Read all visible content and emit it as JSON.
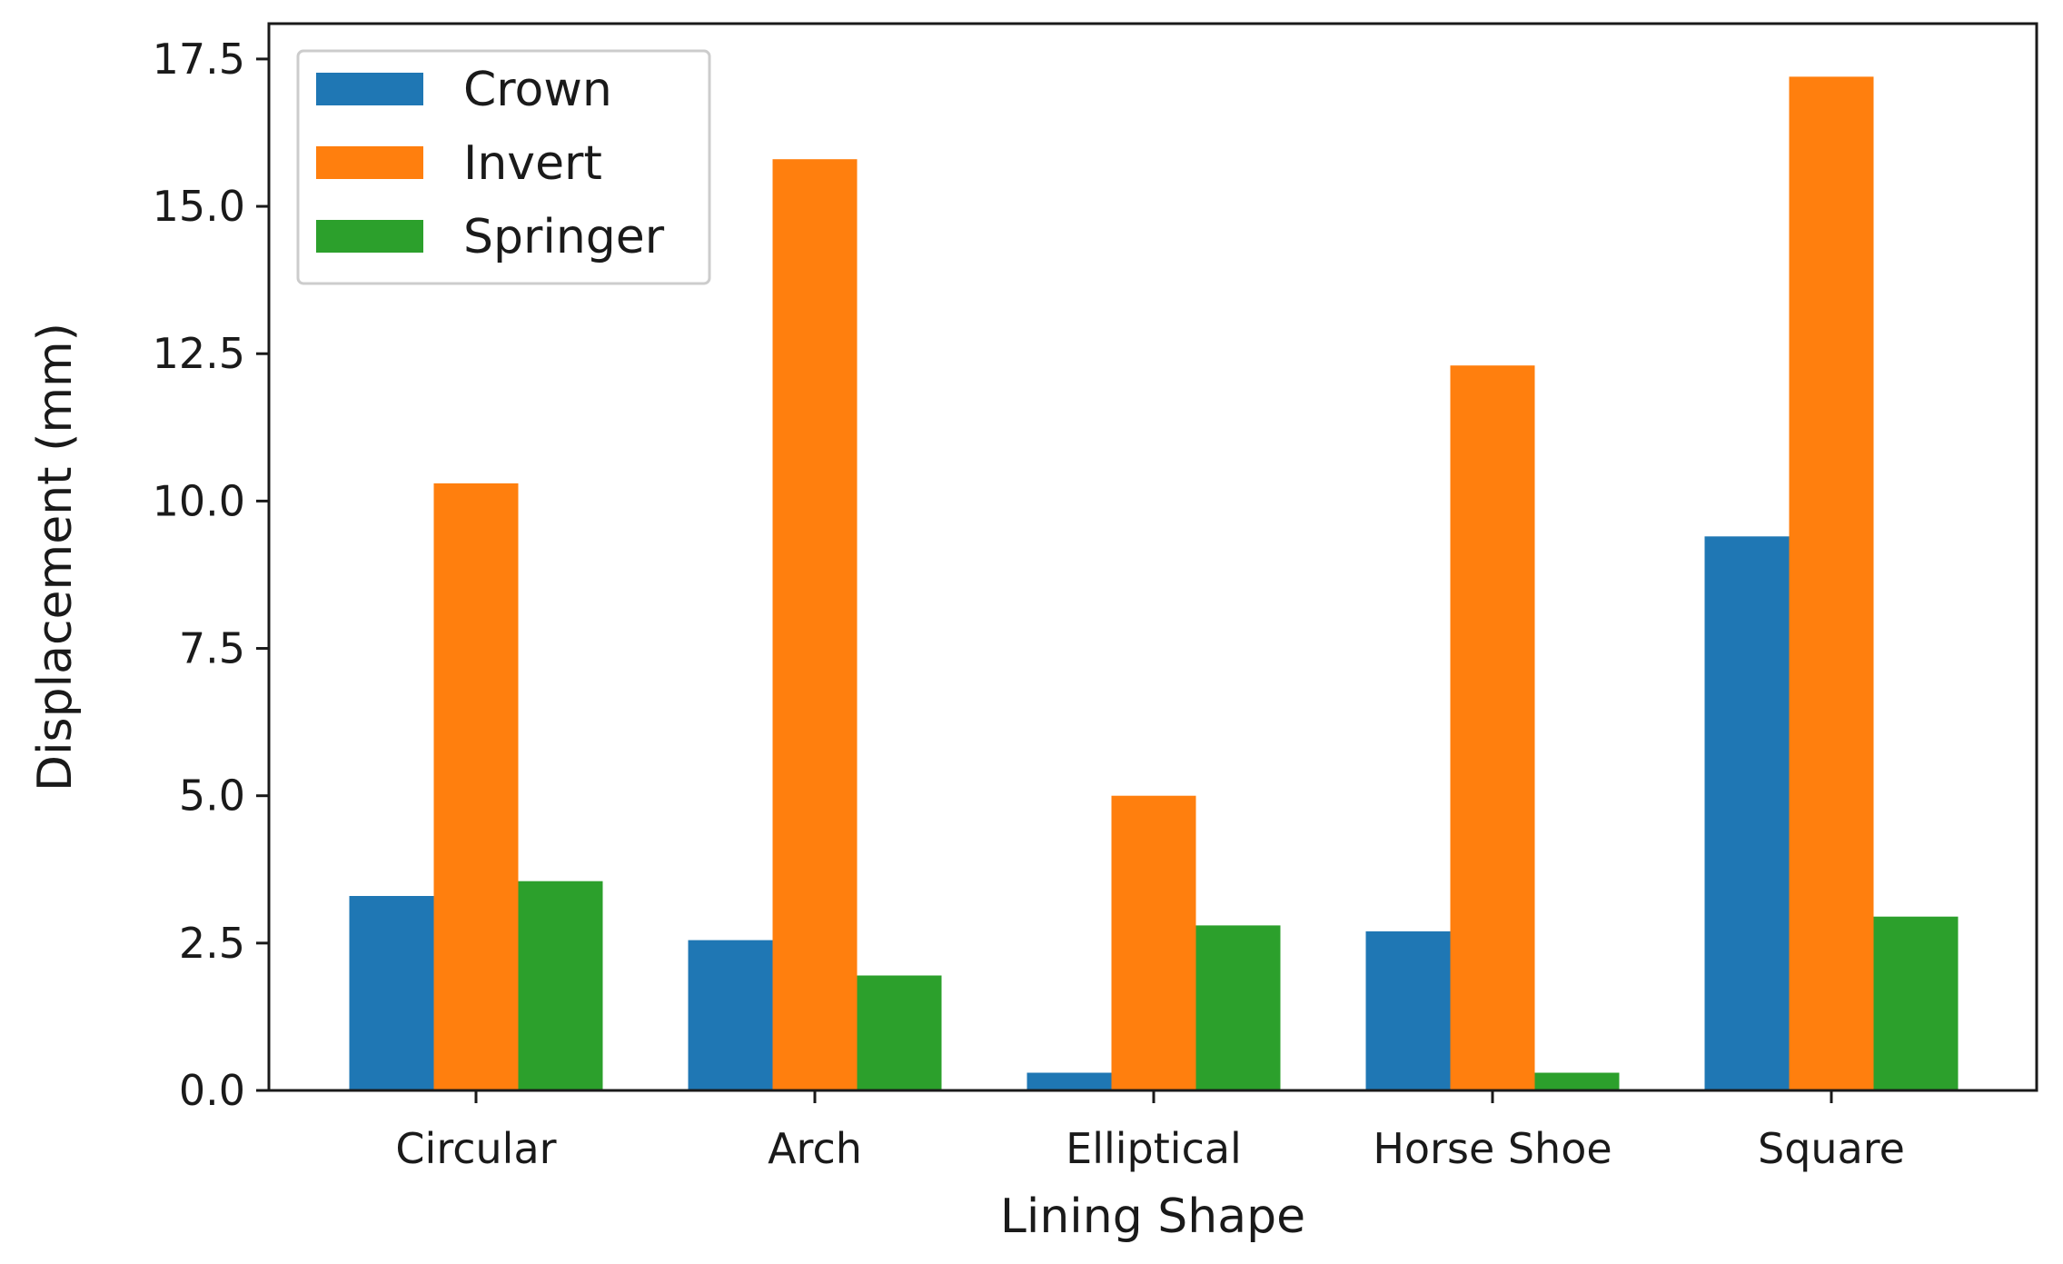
{
  "chart_data": {
    "type": "bar",
    "title": "",
    "xlabel": "Lining Shape",
    "ylabel": "Displacement (mm)",
    "categories": [
      "Circular",
      "Arch",
      "Elliptical",
      "Horse Shoe",
      "Square"
    ],
    "series": [
      {
        "name": "Crown",
        "color": "#1f77b4",
        "values": [
          3.3,
          2.55,
          0.3,
          2.7,
          9.4
        ]
      },
      {
        "name": "Invert",
        "color": "#ff7f0e",
        "values": [
          10.3,
          15.8,
          5.0,
          12.3,
          17.2
        ]
      },
      {
        "name": "Springer",
        "color": "#2ca02c",
        "values": [
          3.55,
          1.95,
          2.8,
          0.3,
          2.95
        ]
      }
    ],
    "ylim": [
      0,
      18.1
    ],
    "yticks": [
      "0.0",
      "2.5",
      "5.0",
      "7.5",
      "10.0",
      "12.5",
      "15.0",
      "17.5"
    ],
    "grid": false,
    "legend_position": "top-left"
  }
}
